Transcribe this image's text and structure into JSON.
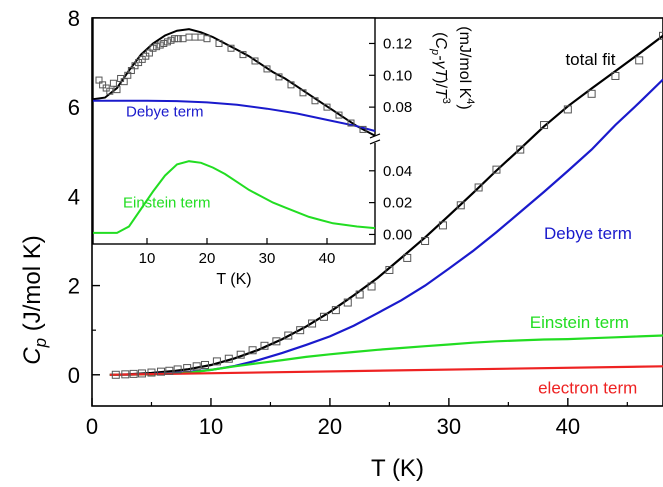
{
  "chart_data": [
    {
      "id": "main",
      "type": "line",
      "xlabel": "T (K)",
      "ylabel_main": "C",
      "ylabel_sub": "p",
      "ylabel_unit": " (J/mol K)",
      "xlim": [
        0,
        48
      ],
      "ylim": [
        -0.7,
        8
      ],
      "xticks": [
        0,
        10,
        20,
        30,
        40
      ],
      "yticks": [
        0,
        2,
        4,
        6,
        8
      ],
      "grid": false,
      "series": [
        {
          "name": "total fit",
          "color": "#000000",
          "x": [
            1.5,
            3,
            5,
            7,
            8,
            10,
            12,
            14,
            16,
            18,
            20,
            22,
            24,
            26,
            28,
            30,
            32,
            34,
            36,
            38,
            40,
            42,
            44,
            46,
            48
          ],
          "y": [
            0,
            0.01,
            0.04,
            0.09,
            0.12,
            0.22,
            0.37,
            0.56,
            0.8,
            1.08,
            1.41,
            1.78,
            2.17,
            2.62,
            3.08,
            3.57,
            4.07,
            4.58,
            5.07,
            5.57,
            6.02,
            6.42,
            6.81,
            7.2,
            7.6
          ]
        },
        {
          "name": "Debye term",
          "color": "#1a1acc",
          "x": [
            1.5,
            3,
            5,
            7,
            8,
            10,
            12,
            14,
            16,
            18,
            20,
            22,
            24,
            26,
            28,
            30,
            32,
            34,
            36,
            38,
            40,
            42,
            44,
            46,
            48
          ],
          "y": [
            0,
            0.005,
            0.015,
            0.04,
            0.06,
            0.11,
            0.2,
            0.33,
            0.49,
            0.67,
            0.86,
            1.1,
            1.38,
            1.67,
            2.0,
            2.38,
            2.77,
            3.2,
            3.65,
            4.1,
            4.57,
            5.05,
            5.6,
            6.1,
            6.62
          ]
        },
        {
          "name": "Einstein term",
          "color": "#22dd22",
          "x": [
            1.5,
            5,
            8,
            10,
            12,
            14,
            16,
            18,
            20,
            22,
            24,
            26,
            28,
            30,
            32,
            34,
            36,
            38,
            40,
            42,
            44,
            46,
            48
          ],
          "y": [
            0,
            0.01,
            0.04,
            0.11,
            0.19,
            0.26,
            0.33,
            0.4,
            0.46,
            0.51,
            0.56,
            0.6,
            0.64,
            0.68,
            0.72,
            0.75,
            0.77,
            0.79,
            0.8,
            0.82,
            0.84,
            0.86,
            0.88
          ]
        },
        {
          "name": "electron term",
          "color": "#ee2222",
          "x": [
            1.5,
            48
          ],
          "y": [
            0,
            0.19
          ]
        },
        {
          "name": "data",
          "color": "#555555",
          "marker": "square",
          "x": [
            2,
            2.8,
            3.5,
            4.2,
            5,
            5.8,
            6.5,
            7.2,
            8,
            8.8,
            9.5,
            10.5,
            11.5,
            12.5,
            13.5,
            14.5,
            15.5,
            16.5,
            17.5,
            18.5,
            19.5,
            20.5,
            21.5,
            22.5,
            23.5,
            25,
            26.5,
            28,
            29.5,
            31,
            32.5,
            34,
            36,
            38,
            40,
            42,
            44,
            46,
            48
          ],
          "y": [
            0,
            0.01,
            0.02,
            0.03,
            0.05,
            0.07,
            0.09,
            0.12,
            0.15,
            0.19,
            0.22,
            0.3,
            0.36,
            0.45,
            0.55,
            0.65,
            0.75,
            0.88,
            1.0,
            1.15,
            1.3,
            1.45,
            1.62,
            1.8,
            1.98,
            2.35,
            2.62,
            3.0,
            3.35,
            3.8,
            4.2,
            4.6,
            5.05,
            5.6,
            5.95,
            6.3,
            6.7,
            7.05,
            7.6
          ]
        }
      ],
      "annotations": [
        {
          "text": "total fit",
          "color": "#000000",
          "x": 39.8,
          "y": 6.95
        },
        {
          "text": "Debye term",
          "color": "#1a1acc",
          "x": 38,
          "y": 3.05
        },
        {
          "text": "Einstein term",
          "color": "#22dd22",
          "x": 36.8,
          "y": 1.05
        },
        {
          "text": "electron term",
          "color": "#ee2222",
          "x": 37.5,
          "y": -0.42
        }
      ]
    },
    {
      "id": "inset",
      "type": "line",
      "xlabel": "T (K)",
      "ylabel": "(C_p-γT)/T^3 (mJ/mol K^4)",
      "xlim": [
        1,
        48
      ],
      "ylim": [
        -0.006,
        0.136
      ],
      "xticks": [
        10,
        20,
        30,
        40
      ],
      "yticks": [
        0.0,
        0.02,
        0.04,
        0.08,
        0.1,
        0.12
      ],
      "ytick_labels": [
        "0.00",
        "0.02",
        "0.04",
        "0.08",
        "0.10",
        "0.12"
      ],
      "axis_break_at": 0.06,
      "series": [
        {
          "name": "total fit",
          "color": "#000000",
          "x": [
            1,
            3,
            5,
            7,
            9,
            11,
            13,
            15,
            17,
            19,
            21,
            23,
            25,
            27,
            29,
            31,
            33,
            35,
            37,
            39,
            41,
            43,
            45,
            48
          ],
          "y": [
            0.085,
            0.086,
            0.092,
            0.103,
            0.113,
            0.12,
            0.125,
            0.128,
            0.129,
            0.127,
            0.124,
            0.12,
            0.116,
            0.112,
            0.107,
            0.102,
            0.098,
            0.093,
            0.088,
            0.083,
            0.078,
            0.073,
            0.068,
            0.062
          ]
        },
        {
          "name": "Debye term",
          "color": "#1a1acc",
          "x": [
            1,
            5,
            10,
            15,
            20,
            25,
            30,
            35,
            40,
            45,
            48
          ],
          "y": [
            0.084,
            0.084,
            0.084,
            0.0838,
            0.083,
            0.0815,
            0.079,
            0.076,
            0.072,
            0.068,
            0.065
          ]
        },
        {
          "name": "Einstein term",
          "color": "#22dd22",
          "x": [
            1,
            5,
            7,
            9,
            11,
            13,
            15,
            17,
            19,
            21,
            23,
            25,
            27,
            29,
            31,
            33,
            35,
            37,
            39,
            41,
            43,
            45,
            48
          ],
          "y": [
            0.001,
            0.001,
            0.005,
            0.016,
            0.027,
            0.037,
            0.044,
            0.046,
            0.045,
            0.042,
            0.038,
            0.033,
            0.028,
            0.024,
            0.02,
            0.017,
            0.014,
            0.011,
            0.009,
            0.007,
            0.006,
            0.005,
            0.004
          ]
        },
        {
          "name": "data",
          "color": "#555555",
          "marker": "square",
          "x": [
            2,
            2.6,
            3.2,
            3.8,
            4.4,
            5,
            5.6,
            6.2,
            6.8,
            7.4,
            8,
            8.6,
            9.2,
            9.8,
            10.4,
            11,
            11.6,
            12.2,
            12.8,
            13.4,
            14,
            14.6,
            15.2,
            16,
            17,
            18,
            19,
            20,
            22,
            24,
            26,
            28,
            30,
            32,
            34,
            36,
            38,
            40,
            42,
            44,
            46
          ],
          "y": [
            0.097,
            0.094,
            0.092,
            0.09,
            0.095,
            0.091,
            0.098,
            0.096,
            0.1,
            0.103,
            0.106,
            0.108,
            0.11,
            0.112,
            0.114,
            0.117,
            0.118,
            0.119,
            0.12,
            0.121,
            0.122,
            0.123,
            0.123,
            0.123,
            0.124,
            0.124,
            0.124,
            0.123,
            0.12,
            0.117,
            0.113,
            0.109,
            0.104,
            0.099,
            0.094,
            0.089,
            0.084,
            0.08,
            0.075,
            0.07,
            0.066
          ]
        }
      ],
      "annotations": [
        {
          "text": "Debye term",
          "color": "#1a1acc",
          "x": 6.5,
          "y": 0.074
        },
        {
          "text": "Einstein term",
          "color": "#22dd22",
          "x": 6,
          "y": 0.017
        }
      ]
    }
  ]
}
